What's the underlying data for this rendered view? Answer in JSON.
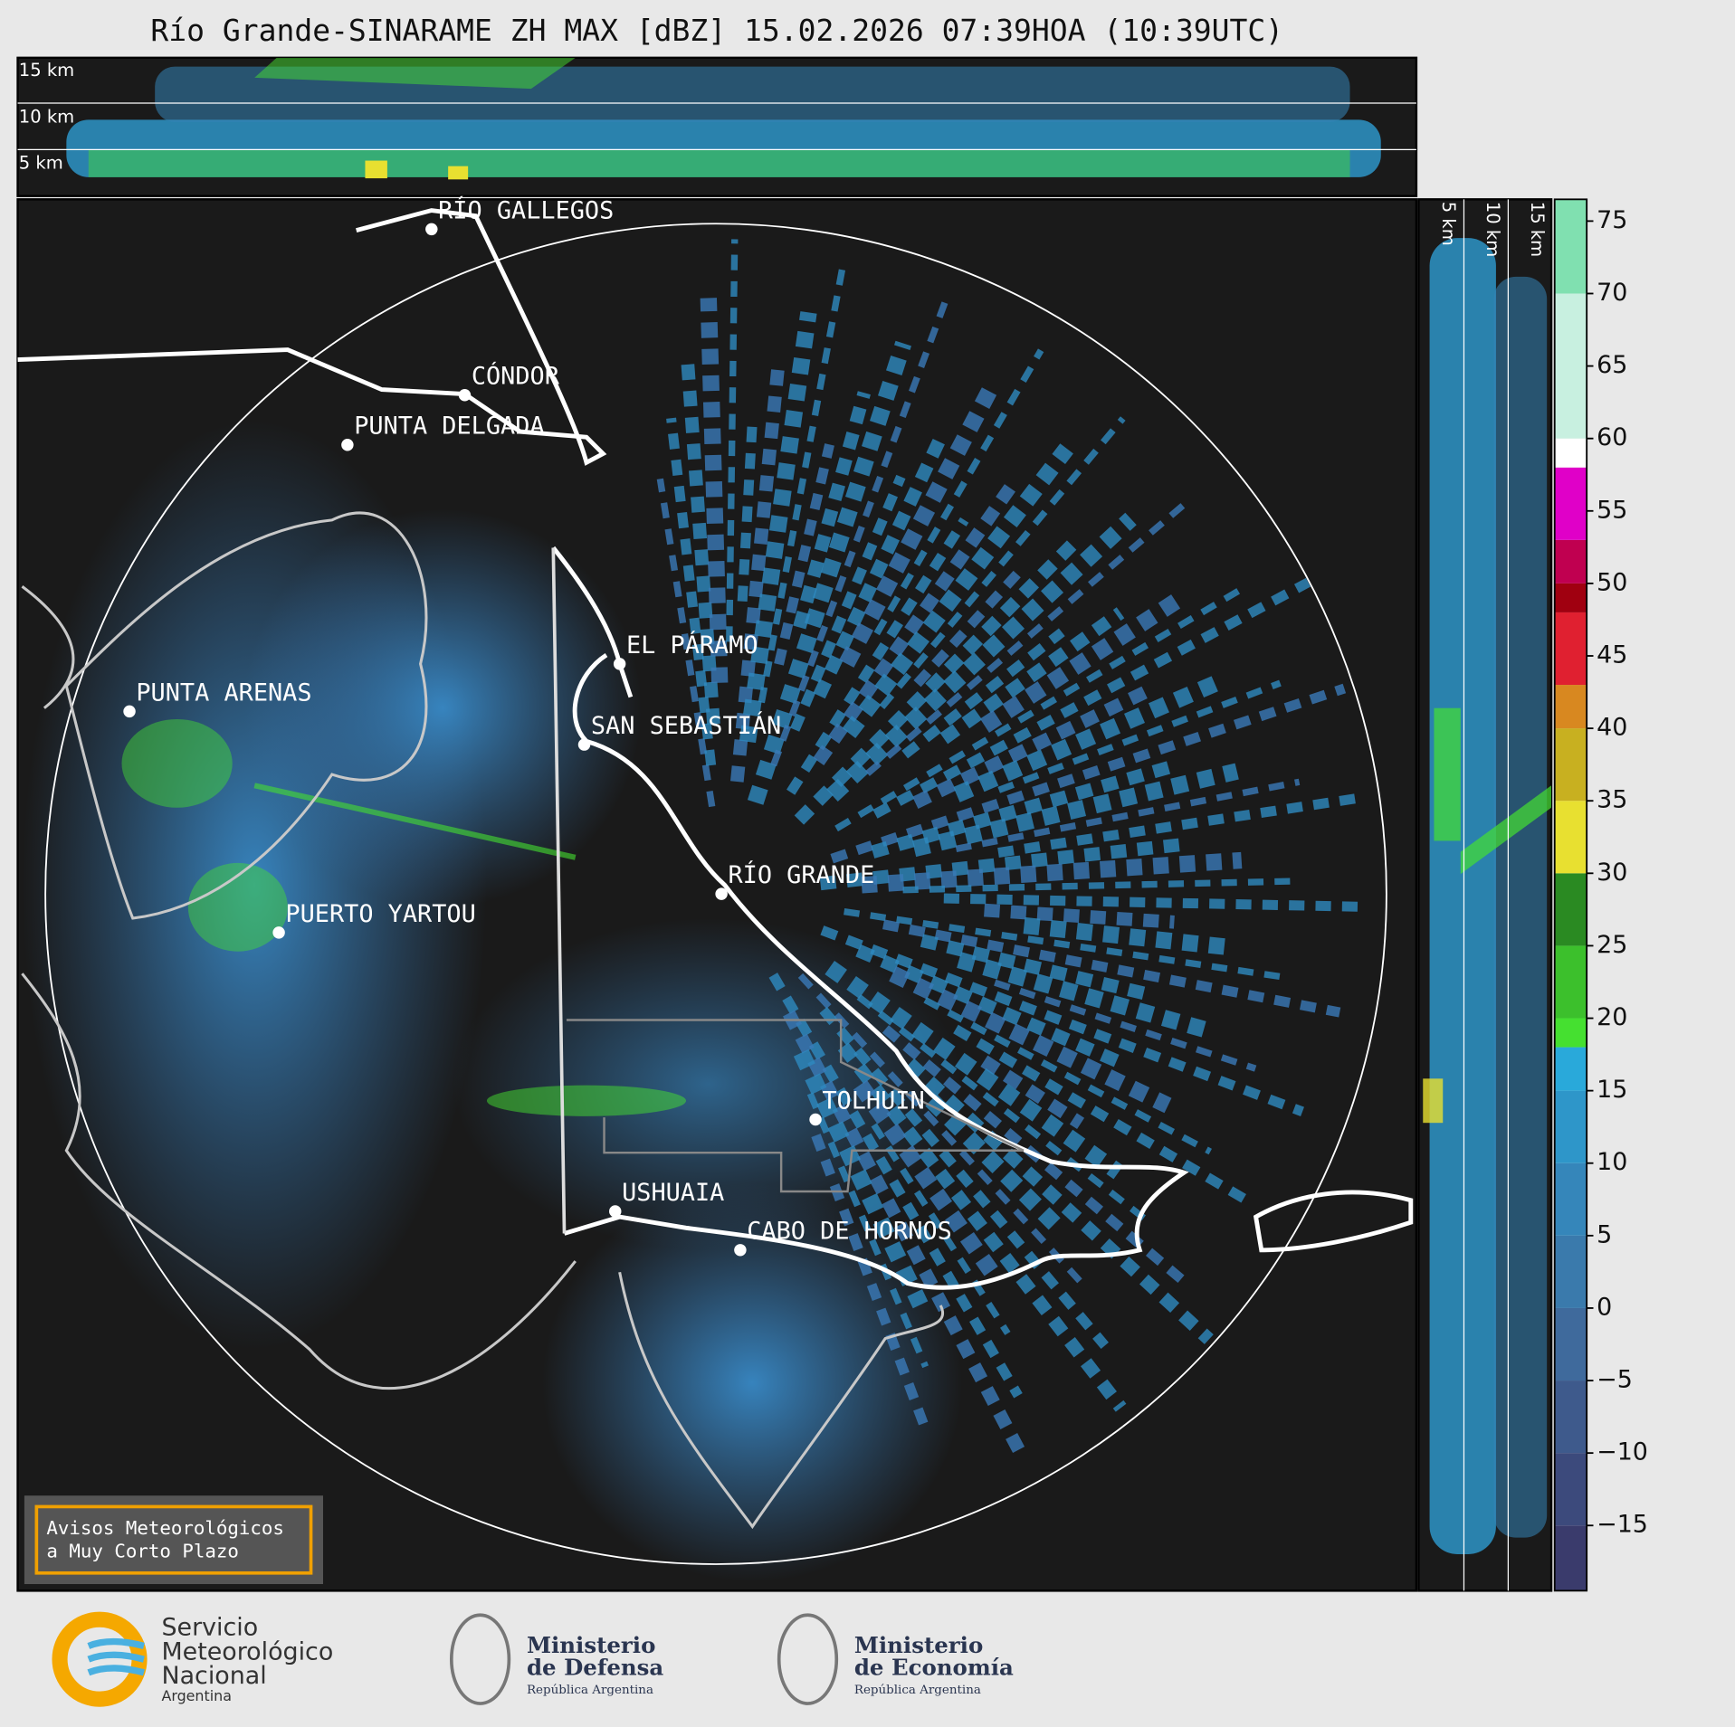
{
  "header": {
    "title": "Río Grande-SINARAME ZH MAX [dBZ] 15.02.2026 07:39HOA (10:39UTC)"
  },
  "top_section": {
    "height_labels": [
      "15 km",
      "10 km",
      "5 km"
    ]
  },
  "side_section": {
    "height_labels": [
      "5 km",
      "10 km",
      "15 km"
    ]
  },
  "map": {
    "places": [
      "RÍO GALLEGOS",
      "CÓNDOR",
      "PUNTA DELGADA",
      "EL PÁRAMO",
      "SAN SEBASTIÁN",
      "PUNTA ARENAS",
      "RÍO GRANDE",
      "PUERTO YARTOU",
      "TOLHUIN",
      "USHUAIA",
      "CABO DE HORNOS"
    ],
    "notice": [
      "Avisos Meteorológicos",
      "a Muy Corto Plazo"
    ]
  },
  "colorbar": {
    "lim": [
      -19.5,
      76.5
    ],
    "ticks": [
      {
        "value": -15,
        "label": "−15"
      },
      {
        "value": -10,
        "label": "−10"
      },
      {
        "value": -5,
        "label": "−5"
      },
      0,
      5,
      10,
      15,
      20,
      25,
      30,
      35,
      40,
      45,
      50,
      55,
      60,
      65,
      70,
      75
    ],
    "bands": [
      {
        "from": -19.5,
        "color": "#3a3b6c"
      },
      {
        "from": -15,
        "color": "#3c4a7c"
      },
      {
        "from": -10,
        "color": "#3e5a8c"
      },
      {
        "from": -5,
        "color": "#3f6a9c"
      },
      {
        "from": 0,
        "color": "#3a7aac"
      },
      {
        "from": 5,
        "color": "#3586ba"
      },
      {
        "from": 10,
        "color": "#2e96c9"
      },
      {
        "from": 15,
        "color": "#29a9da"
      },
      {
        "from": 18,
        "color": "#45e030"
      },
      {
        "from": 20,
        "color": "#3cc02c"
      },
      {
        "from": 25,
        "color": "#2a8a22"
      },
      {
        "from": 30,
        "color": "#e8e030"
      },
      {
        "from": 35,
        "color": "#c8b020"
      },
      {
        "from": 40,
        "color": "#d88820"
      },
      {
        "from": 43,
        "color": "#e02030"
      },
      {
        "from": 48,
        "color": "#a00010"
      },
      {
        "from": 50,
        "color": "#c00050"
      },
      {
        "from": 53,
        "color": "#e000c8"
      },
      {
        "from": 58,
        "color": "#ffffff"
      },
      {
        "from": 60,
        "color": "#c8f0e0"
      },
      {
        "from": 70,
        "color": "#80e0b0"
      }
    ]
  },
  "footer": {
    "smn": [
      "Servicio",
      "Meteorológico",
      "Nacional",
      "Argentina"
    ],
    "defensa": [
      "Ministerio",
      "de Defensa",
      "República Argentina"
    ],
    "economia": [
      "Ministerio",
      "de Economía",
      "República Argentina"
    ]
  }
}
